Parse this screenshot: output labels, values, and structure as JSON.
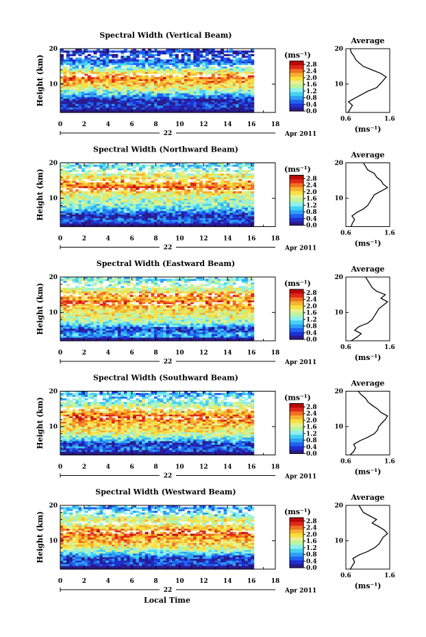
{
  "chart_data": {
    "type": "heatmap",
    "date_label": "Apr 2011",
    "day_label": "22",
    "xlabel": "Local Time",
    "ylabel": "Height (km)",
    "xlim": [
      0,
      18
    ],
    "ylim": [
      2,
      20
    ],
    "x_ticks": [
      "0",
      "2",
      "4",
      "6",
      "8",
      "10",
      "12",
      "14",
      "16",
      "18"
    ],
    "y_ticks": [
      "20",
      "10"
    ],
    "colorbar": {
      "unit": "(ms⁻¹)",
      "ticks": [
        "2.8",
        "2.4",
        "2.0",
        "1.6",
        "1.2",
        "0.8",
        "0.4",
        "0.0"
      ],
      "min": 0.0,
      "max": 3.0,
      "colors": [
        "#2b1a8c",
        "#1f2fd0",
        "#1f63f0",
        "#2fa0f5",
        "#45d2f2",
        "#8ff0ee",
        "#b8f5a0",
        "#e8f090",
        "#f8e040",
        "#f8b030",
        "#f07020",
        "#e02818",
        "#b80808"
      ]
    },
    "panels": [
      {
        "title": "Spectral Width (Vertical Beam)",
        "avg_title": "Average",
        "avg_xlabel": "(ms⁻¹)",
        "avg_xticks": [
          "0.6",
          "1.6"
        ],
        "avg_xlim": [
          0.6,
          1.6
        ],
        "heights": [
          2,
          3,
          4,
          5,
          6,
          7,
          8,
          9,
          10,
          11,
          12,
          13,
          14,
          15,
          16,
          17,
          18,
          19,
          20
        ],
        "avg_values": [
          0.65,
          0.7,
          0.75,
          0.66,
          0.8,
          0.95,
          1.1,
          1.3,
          1.38,
          1.45,
          1.52,
          1.4,
          1.2,
          1.0,
          0.9,
          0.82,
          0.78,
          0.72,
          0.7
        ]
      },
      {
        "title": "Spectral Width (Northward Beam)",
        "avg_title": "Average",
        "avg_xlabel": "(ms⁻¹)",
        "avg_xticks": [
          "0.6",
          "1.6"
        ],
        "avg_xlim": [
          0.6,
          1.6
        ],
        "heights": [
          2,
          3,
          4,
          5,
          6,
          7,
          8,
          9,
          10,
          11,
          12,
          13,
          14,
          15,
          16,
          17,
          18,
          19,
          20
        ],
        "avg_values": [
          0.72,
          0.75,
          0.8,
          0.74,
          0.85,
          1.0,
          1.1,
          1.15,
          1.2,
          1.25,
          1.4,
          1.55,
          1.45,
          1.4,
          1.3,
          1.25,
          1.1,
          1.05,
          1.0
        ]
      },
      {
        "title": "Spectral Width (Eastward Beam)",
        "avg_title": "Average",
        "avg_xlabel": "(ms⁻¹)",
        "avg_xticks": [
          "0.6",
          "1.6"
        ],
        "avg_xlim": [
          0.6,
          1.6
        ],
        "heights": [
          2,
          3,
          4,
          5,
          6,
          7,
          8,
          9,
          10,
          11,
          12,
          13,
          14,
          15,
          16,
          17,
          18,
          19,
          20
        ],
        "avg_values": [
          0.72,
          0.85,
          0.95,
          0.8,
          0.9,
          1.1,
          1.2,
          1.25,
          1.3,
          1.35,
          1.45,
          1.55,
          1.4,
          1.5,
          1.3,
          1.2,
          1.15,
          1.1,
          1.05
        ]
      },
      {
        "title": "Spectral Width (Southward Beam)",
        "avg_title": "Average",
        "avg_xlabel": "(ms⁻¹)",
        "avg_xticks": [
          "0.6",
          "1.6"
        ],
        "avg_xlim": [
          0.6,
          1.6
        ],
        "heights": [
          2,
          3,
          4,
          5,
          6,
          7,
          8,
          9,
          10,
          11,
          12,
          13,
          14,
          15,
          16,
          17,
          18,
          19,
          20
        ],
        "avg_values": [
          0.7,
          0.78,
          0.82,
          0.78,
          0.92,
          1.1,
          1.25,
          1.32,
          1.35,
          1.42,
          1.5,
          1.55,
          1.4,
          1.32,
          1.2,
          1.1,
          1.05,
          0.95,
          0.88
        ]
      },
      {
        "title": "Spectral Width (Westward Beam)",
        "avg_title": "Average",
        "avg_xlabel": "(ms⁻¹)",
        "avg_xticks": [
          "0.6",
          "1.6"
        ],
        "avg_xlim": [
          0.6,
          1.6
        ],
        "heights": [
          2,
          3,
          4,
          5,
          6,
          7,
          8,
          9,
          10,
          11,
          12,
          13,
          14,
          15,
          16,
          17,
          18,
          19,
          20
        ],
        "avg_values": [
          0.7,
          0.75,
          0.8,
          0.76,
          0.9,
          1.1,
          1.25,
          1.35,
          1.4,
          1.45,
          1.55,
          1.48,
          1.35,
          1.2,
          1.3,
          1.15,
          1.0,
          0.95,
          0.9
        ]
      }
    ]
  }
}
